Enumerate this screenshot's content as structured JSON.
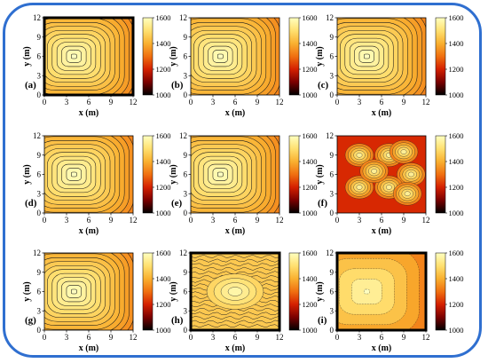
{
  "chart_data": [
    {
      "type": "heatmap",
      "panel_label": "(a)",
      "xlabel": "x (m)",
      "ylabel": "y (m)",
      "xticks": [
        0,
        3,
        6,
        9,
        12
      ],
      "yticks": [
        0,
        3,
        6,
        9,
        12
      ],
      "xlim": [
        0,
        12
      ],
      "ylim": [
        0,
        12
      ],
      "colorbar": {
        "ticks": [
          1000,
          1200,
          1400,
          1600
        ],
        "range": [
          1000,
          1600
        ]
      },
      "peak": {
        "x": 4,
        "y": 6
      },
      "peak_value": 1600
    },
    {
      "type": "heatmap",
      "panel_label": "(b)",
      "xlabel": "x (m)",
      "ylabel": "y (m)",
      "xticks": [
        0,
        3,
        6,
        9,
        12
      ],
      "yticks": [
        0,
        3,
        6,
        9,
        12
      ],
      "xlim": [
        0,
        12
      ],
      "ylim": [
        0,
        12
      ],
      "colorbar": {
        "ticks": [
          1000,
          1200,
          1400,
          1600
        ],
        "range": [
          1000,
          1600
        ]
      },
      "peak": {
        "x": 4,
        "y": 6
      },
      "peak_value": 1600
    },
    {
      "type": "heatmap",
      "panel_label": "(c)",
      "xlabel": "x (m)",
      "ylabel": "y (m)",
      "xticks": [
        0,
        3,
        6,
        9,
        12
      ],
      "yticks": [
        0,
        3,
        6,
        9,
        12
      ],
      "xlim": [
        0,
        12
      ],
      "ylim": [
        0,
        12
      ],
      "colorbar": {
        "ticks": [
          1000,
          1200,
          1400,
          1600
        ],
        "range": [
          1000,
          1600
        ]
      },
      "peak": {
        "x": 4,
        "y": 6
      },
      "peak_value": 1600
    },
    {
      "type": "heatmap",
      "panel_label": "(d)",
      "xlabel": "x (m)",
      "ylabel": "y (m)",
      "xticks": [
        0,
        3,
        6,
        9,
        12
      ],
      "yticks": [
        0,
        3,
        6,
        9,
        12
      ],
      "xlim": [
        0,
        12
      ],
      "ylim": [
        0,
        12
      ],
      "colorbar": {
        "ticks": [
          1000,
          1200,
          1400,
          1600
        ],
        "range": [
          1000,
          1600
        ]
      },
      "peak": {
        "x": 4,
        "y": 6
      },
      "peak_value": 1600
    },
    {
      "type": "heatmap",
      "panel_label": "(e)",
      "xlabel": "x (m)",
      "ylabel": "y (m)",
      "xticks": [
        0,
        3,
        6,
        9,
        12
      ],
      "yticks": [
        0,
        3,
        6,
        9,
        12
      ],
      "xlim": [
        0,
        12
      ],
      "ylim": [
        0,
        12
      ],
      "colorbar": {
        "ticks": [
          1000,
          1200,
          1400,
          1600
        ],
        "range": [
          1000,
          1600
        ]
      },
      "peak": {
        "x": 4,
        "y": 6
      },
      "peak_value": 1600
    },
    {
      "type": "heatmap",
      "panel_label": "(f)",
      "xlabel": "x (m)",
      "ylabel": "y (m)",
      "xticks": [
        0,
        3,
        6,
        9,
        12
      ],
      "yticks": [
        0,
        3,
        6,
        9,
        12
      ],
      "xlim": [
        0,
        12
      ],
      "ylim": [
        0,
        12
      ],
      "colorbar": {
        "ticks": [
          1000,
          1200,
          1400,
          1600
        ],
        "range": [
          1000,
          1600
        ]
      },
      "pattern": "multiple hot spots"
    },
    {
      "type": "heatmap",
      "panel_label": "(g)",
      "xlabel": "x (m)",
      "ylabel": "y (m)",
      "xticks": [
        0,
        3,
        6,
        9,
        12
      ],
      "yticks": [
        0,
        3,
        6,
        9,
        12
      ],
      "xlim": [
        0,
        12
      ],
      "ylim": [
        0,
        12
      ],
      "colorbar": {
        "ticks": [
          1000,
          1200,
          1400,
          1600
        ],
        "range": [
          1000,
          1600
        ]
      },
      "peak": {
        "x": 4,
        "y": 6
      },
      "peak_value": 1600
    },
    {
      "type": "heatmap",
      "panel_label": "(h)",
      "xlabel": "x (m)",
      "ylabel": "y (m)",
      "xticks": [
        0,
        3,
        6,
        9,
        12
      ],
      "yticks": [
        0,
        3,
        6,
        9,
        12
      ],
      "xlim": [
        0,
        12
      ],
      "ylim": [
        0,
        12
      ],
      "colorbar": {
        "ticks": [
          1000,
          1200,
          1400,
          1600
        ],
        "range": [
          1000,
          1600
        ]
      },
      "pattern": "noisy banded field"
    },
    {
      "type": "heatmap",
      "panel_label": "(i)",
      "xlabel": "x (m)",
      "ylabel": "y (m)",
      "xticks": [
        0,
        3,
        6,
        9,
        12
      ],
      "yticks": [
        0,
        3,
        6,
        9,
        12
      ],
      "xlim": [
        0,
        12
      ],
      "ylim": [
        0,
        12
      ],
      "colorbar": {
        "ticks": [
          1000,
          1200,
          1400,
          1600
        ],
        "range": [
          1000,
          1600
        ]
      },
      "peak": {
        "x": 4,
        "y": 6
      },
      "pattern": "noisy plateau"
    }
  ],
  "colors": {
    "frame": "#2f6fd0",
    "colormap": [
      "#000000",
      "#7a0000",
      "#d42000",
      "#f07010",
      "#f9b030",
      "#ffe070",
      "#ffffc0"
    ]
  }
}
